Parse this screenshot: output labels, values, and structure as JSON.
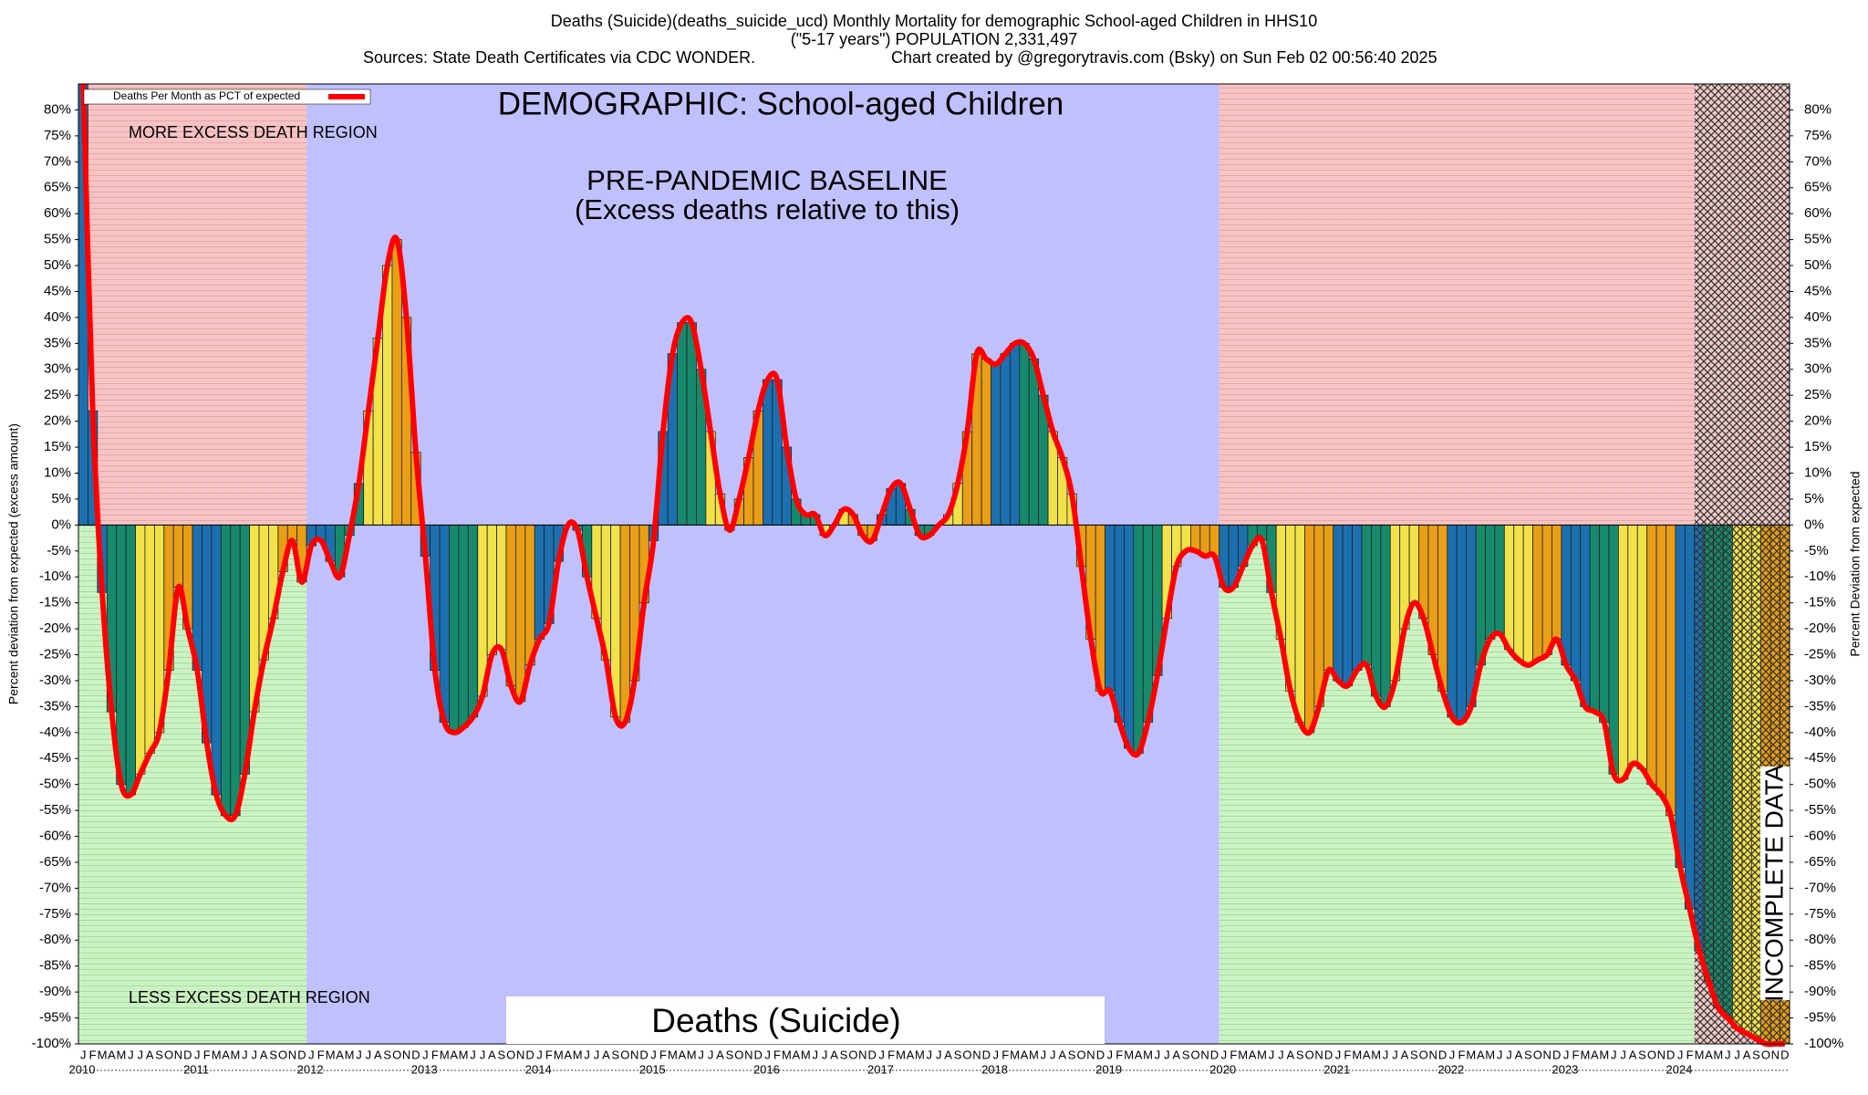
{
  "chart_data": {
    "type": "bar",
    "title": "Deaths (Suicide)(deaths_suicide_ucd) Monthly Mortality for demographic School-aged Children in HHS10",
    "subtitle": "(\"5-17 years\") POPULATION 2,331,497",
    "sources": "Sources: State Death Certificates via CDC WONDER.",
    "credit": "Chart created by @gregorytravis.com (Bsky) on Sun Feb 02 00:56:40 2025",
    "annotations": {
      "demographic": "DEMOGRAPHIC: School-aged Children",
      "baseline": "PRE-PANDEMIC BASELINE",
      "baseline_note": "(Excess deaths relative to this)",
      "more": "MORE EXCESS DEATH REGION",
      "less": "LESS EXCESS DEATH REGION",
      "cause": "Deaths (Suicide)",
      "incomplete": "INCOMPLETE DATA"
    },
    "y_label": "Percent deviation from expected (excess amount)",
    "y2_label": "Percent Deviation from expected",
    "years": [
      "2010",
      "2011",
      "2012",
      "2013",
      "2014",
      "2015",
      "2016",
      "2017",
      "2018",
      "2019",
      "2020",
      "2021",
      "2022",
      "2023",
      "2024"
    ],
    "categories": [
      "J",
      "F",
      "M",
      "A",
      "M",
      "J",
      "J",
      "A",
      "S",
      "O",
      "N",
      "D",
      "J",
      "F",
      "M",
      "A",
      "M",
      "J",
      "J",
      "A",
      "S",
      "O",
      "N",
      "D",
      "J",
      "F",
      "M",
      "A",
      "M",
      "J",
      "J",
      "A",
      "S",
      "O",
      "N",
      "D",
      "J",
      "F",
      "M",
      "A",
      "M",
      "J",
      "J",
      "A",
      "S",
      "O",
      "N",
      "D",
      "J",
      "F",
      "M",
      "A",
      "M",
      "J",
      "J",
      "A",
      "S",
      "O",
      "N",
      "D",
      "J",
      "F",
      "M",
      "A",
      "M",
      "J",
      "J",
      "A",
      "S",
      "O",
      "N",
      "D",
      "J",
      "F",
      "M",
      "A",
      "M",
      "J",
      "J",
      "A",
      "S",
      "O",
      "N",
      "D",
      "J",
      "F",
      "M",
      "A",
      "M",
      "J",
      "J",
      "A",
      "S",
      "O",
      "N",
      "D",
      "J",
      "F",
      "M",
      "A",
      "M",
      "J",
      "J",
      "A",
      "S",
      "O",
      "N",
      "D",
      "J",
      "F",
      "M",
      "A",
      "M",
      "J",
      "J",
      "A",
      "S",
      "O",
      "N",
      "D",
      "J",
      "F",
      "M",
      "A",
      "M",
      "J",
      "J",
      "A",
      "S",
      "O",
      "N",
      "D",
      "J",
      "F",
      "M",
      "A",
      "M",
      "J",
      "J",
      "A",
      "S",
      "O",
      "N",
      "D",
      "J",
      "F",
      "M",
      "A",
      "M",
      "J",
      "J",
      "A",
      "S",
      "O",
      "N",
      "D",
      "J",
      "F",
      "M",
      "A",
      "M",
      "J",
      "J",
      "A",
      "S",
      "O",
      "N",
      "D",
      "J",
      "F",
      "M",
      "A",
      "M",
      "J",
      "J",
      "A",
      "S",
      "O",
      "N",
      "D"
    ],
    "series": [
      {
        "name": "Deaths Per Month as PCT of expected",
        "color": "#ff0000",
        "values": [
          85,
          22,
          -13,
          -36,
          -50,
          -52,
          -48,
          -44,
          -40,
          -28,
          -12,
          -20,
          -28,
          -42,
          -52,
          -56,
          -56,
          -48,
          -36,
          -26,
          -18,
          -9,
          -3,
          -11,
          -4,
          -3,
          -7,
          -10,
          -2,
          8,
          22,
          36,
          50,
          55,
          40,
          14,
          -6,
          -28,
          -38,
          -40,
          -39,
          -37,
          -33,
          -25,
          -24,
          -31,
          -34,
          -27,
          -22,
          -19,
          -7,
          0,
          -1,
          -10,
          -18,
          -26,
          -37,
          -38,
          -30,
          -15,
          -3,
          18,
          33,
          39,
          39,
          30,
          18,
          6,
          -1,
          5,
          13,
          22,
          28,
          28,
          15,
          5,
          2,
          2,
          -2,
          0,
          3,
          2,
          -2,
          -3,
          2,
          7,
          8,
          3,
          -2,
          -2,
          0,
          2,
          8,
          18,
          33,
          32,
          31,
          33,
          35,
          35,
          32,
          25,
          18,
          13,
          6,
          -8,
          -22,
          -32,
          -32,
          -38,
          -43,
          -44,
          -38,
          -29,
          -18,
          -8,
          -5,
          -5,
          -6,
          -6,
          -12,
          -12,
          -8,
          -4,
          -3,
          -13,
          -22,
          -32,
          -38,
          -40,
          -35,
          -28,
          -30,
          -31,
          -28,
          -27,
          -33,
          -35,
          -30,
          -20,
          -15,
          -18,
          -25,
          -32,
          -37,
          -38,
          -35,
          -27,
          -22,
          -21,
          -24,
          -26,
          -27,
          -26,
          -25,
          -22,
          -27,
          -30,
          -35,
          -36,
          -38,
          -48,
          -49,
          -46,
          -47,
          -50,
          -52,
          -56,
          -66,
          -74,
          -82,
          -88,
          -93,
          -95,
          -97,
          -98,
          -99,
          -100,
          -100,
          -100
        ]
      }
    ],
    "quarter_colors": [
      "#1c70b0",
      "#178a6c",
      "#f2e24a",
      "#e89e16"
    ],
    "ylim": [
      -100,
      85
    ],
    "yticks": [
      {
        "value": 80,
        "label": "80%"
      },
      {
        "value": 75,
        "label": "75%"
      },
      {
        "value": 70,
        "label": "70%"
      },
      {
        "value": 65,
        "label": "65%"
      },
      {
        "value": 60,
        "label": "60%"
      },
      {
        "value": 55,
        "label": "55%"
      },
      {
        "value": 50,
        "label": "50%"
      },
      {
        "value": 45,
        "label": "45%"
      },
      {
        "value": 40,
        "label": "40%"
      },
      {
        "value": 35,
        "label": "35%"
      },
      {
        "value": 30,
        "label": "30%"
      },
      {
        "value": 25,
        "label": "25%"
      },
      {
        "value": 20,
        "label": "20%"
      },
      {
        "value": 15,
        "label": "15%"
      },
      {
        "value": 10,
        "label": "10%"
      },
      {
        "value": 5,
        "label": "5%"
      },
      {
        "value": 0,
        "label": "0%"
      },
      {
        "value": -5,
        "label": "-5%"
      },
      {
        "value": -10,
        "label": "-10%"
      },
      {
        "value": -15,
        "label": "-15%"
      },
      {
        "value": -20,
        "label": "-20%"
      },
      {
        "value": -25,
        "label": "-25%"
      },
      {
        "value": -30,
        "label": "-30%"
      },
      {
        "value": -35,
        "label": "-35%"
      },
      {
        "value": -40,
        "label": "-40%"
      },
      {
        "value": -45,
        "label": "-45%"
      },
      {
        "value": -50,
        "label": "-50%"
      },
      {
        "value": -55,
        "label": "-55%"
      },
      {
        "value": -60,
        "label": "-60%"
      },
      {
        "value": -65,
        "label": "-65%"
      },
      {
        "value": -70,
        "label": "-70%"
      },
      {
        "value": -75,
        "label": "-75%"
      },
      {
        "value": -80,
        "label": "-80%"
      },
      {
        "value": -85,
        "label": "-85%"
      },
      {
        "value": -90,
        "label": "-90%"
      },
      {
        "value": -95,
        "label": "-95%"
      },
      {
        "value": -100,
        "label": "-100%"
      }
    ]
  }
}
